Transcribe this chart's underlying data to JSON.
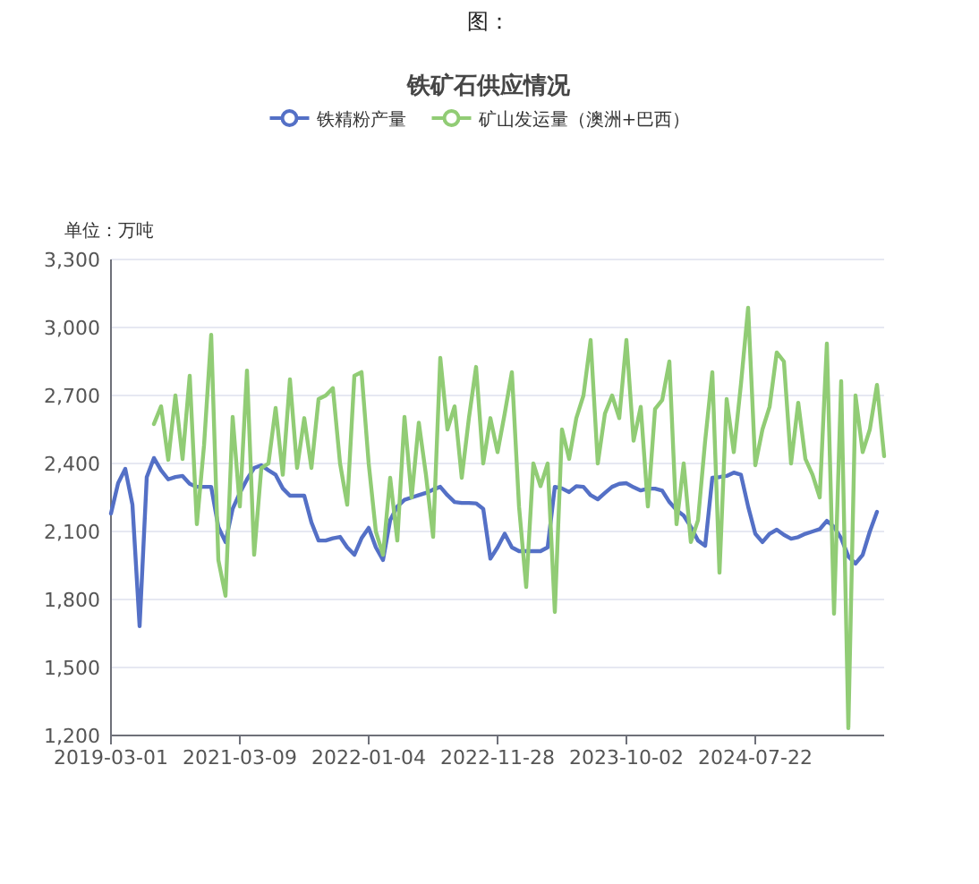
{
  "chart_data": {
    "type": "line",
    "title": "铁矿石供应情况",
    "ylabel": "单位：万吨",
    "annotations": [
      "图："
    ],
    "categories": [
      "2019-03-01",
      null,
      null,
      null,
      null,
      null,
      null,
      null,
      null,
      null,
      null,
      null,
      null,
      null,
      null,
      null,
      null,
      null,
      "2021-03-09",
      null,
      null,
      null,
      null,
      null,
      null,
      null,
      null,
      null,
      null,
      null,
      null,
      null,
      null,
      null,
      null,
      null,
      "2022-01-04",
      null,
      null,
      null,
      null,
      null,
      null,
      null,
      null,
      null,
      null,
      null,
      null,
      null,
      null,
      null,
      null,
      null,
      "2022-11-28",
      null,
      null,
      null,
      null,
      null,
      null,
      null,
      null,
      null,
      null,
      null,
      null,
      null,
      null,
      null,
      null,
      null,
      "2023-10-02",
      null,
      null,
      null,
      null,
      null,
      null,
      null,
      null,
      null,
      null,
      null,
      null,
      null,
      null,
      null,
      null,
      null,
      "2024-07-22",
      null,
      null,
      null,
      null,
      null,
      null,
      null,
      null,
      null,
      null,
      null,
      null,
      null,
      null,
      null,
      null,
      null,
      null
    ],
    "series": [
      {
        "name": "铁精粉产量",
        "color": "#5470c6",
        "values": [
          2179,
          2313,
          2376,
          2218,
          1682,
          2340,
          2424,
          2370,
          2330,
          2340,
          2345,
          2310,
          2297,
          2297,
          2297,
          2120,
          2053,
          2200,
          2270,
          2330,
          2380,
          2392,
          2370,
          2350,
          2290,
          2258,
          2258,
          2258,
          2140,
          2060,
          2060,
          2070,
          2076,
          2030,
          1997,
          2070,
          2116,
          2030,
          1974,
          2150,
          2210,
          2240,
          2250,
          2260,
          2270,
          2285,
          2297,
          2260,
          2230,
          2226,
          2226,
          2224,
          2200,
          1980,
          2030,
          2090,
          2030,
          2013,
          2013,
          2013,
          2013,
          2030,
          2297,
          2290,
          2274,
          2300,
          2297,
          2260,
          2242,
          2270,
          2297,
          2310,
          2313,
          2295,
          2281,
          2289,
          2289,
          2280,
          2230,
          2195,
          2170,
          2120,
          2060,
          2037,
          2337,
          2340,
          2345,
          2360,
          2350,
          2210,
          2090,
          2053,
          2090,
          2108,
          2085,
          2068,
          2075,
          2090,
          2100,
          2110,
          2147,
          2120,
          2070,
          1990,
          1958,
          1997,
          2100,
          2187,
          null
        ]
      },
      {
        "name": "矿山发运量（澳洲+巴西）",
        "color": "#91cc75",
        "values": [
          null,
          null,
          null,
          null,
          null,
          null,
          2574,
          2652,
          2416,
          2700,
          2420,
          2787,
          2132,
          2480,
          2968,
          1974,
          1816,
          2605,
          2210,
          2810,
          1997,
          2380,
          2400,
          2645,
          2350,
          2771,
          2380,
          2600,
          2380,
          2684,
          2700,
          2732,
          2400,
          2218,
          2787,
          2803,
          2400,
          2100,
          1997,
          2337,
          2060,
          2605,
          2250,
          2580,
          2350,
          2076,
          2866,
          2550,
          2652,
          2337,
          2600,
          2826,
          2400,
          2600,
          2450,
          2620,
          2803,
          2210,
          1855,
          2400,
          2300,
          2400,
          1745,
          2550,
          2420,
          2600,
          2700,
          2945,
          2400,
          2620,
          2700,
          2600,
          2945,
          2500,
          2650,
          2210,
          2640,
          2680,
          2850,
          2132,
          2400,
          2053,
          2150,
          2500,
          2803,
          1918,
          2684,
          2450,
          2750,
          3087,
          2392,
          2550,
          2650,
          2890,
          2850,
          2400,
          2668,
          2420,
          2350,
          2250,
          2929,
          1737,
          2763,
          1232,
          2700,
          2450,
          2550,
          2747,
          2432
        ]
      }
    ],
    "ylim": [
      1200,
      3300
    ],
    "yticks": [
      {
        "value": 1200,
        "label": "1,200"
      },
      {
        "value": 1500,
        "label": "1,500"
      },
      {
        "value": 1800,
        "label": "1,800"
      },
      {
        "value": 2100,
        "label": "2,100"
      },
      {
        "value": 2400,
        "label": "2,400"
      },
      {
        "value": 2700,
        "label": "2,700"
      },
      {
        "value": 3000,
        "label": "3,000"
      },
      {
        "value": 3300,
        "label": "3,300"
      }
    ],
    "grid": "y",
    "legend": "top",
    "line_style": "solid"
  }
}
